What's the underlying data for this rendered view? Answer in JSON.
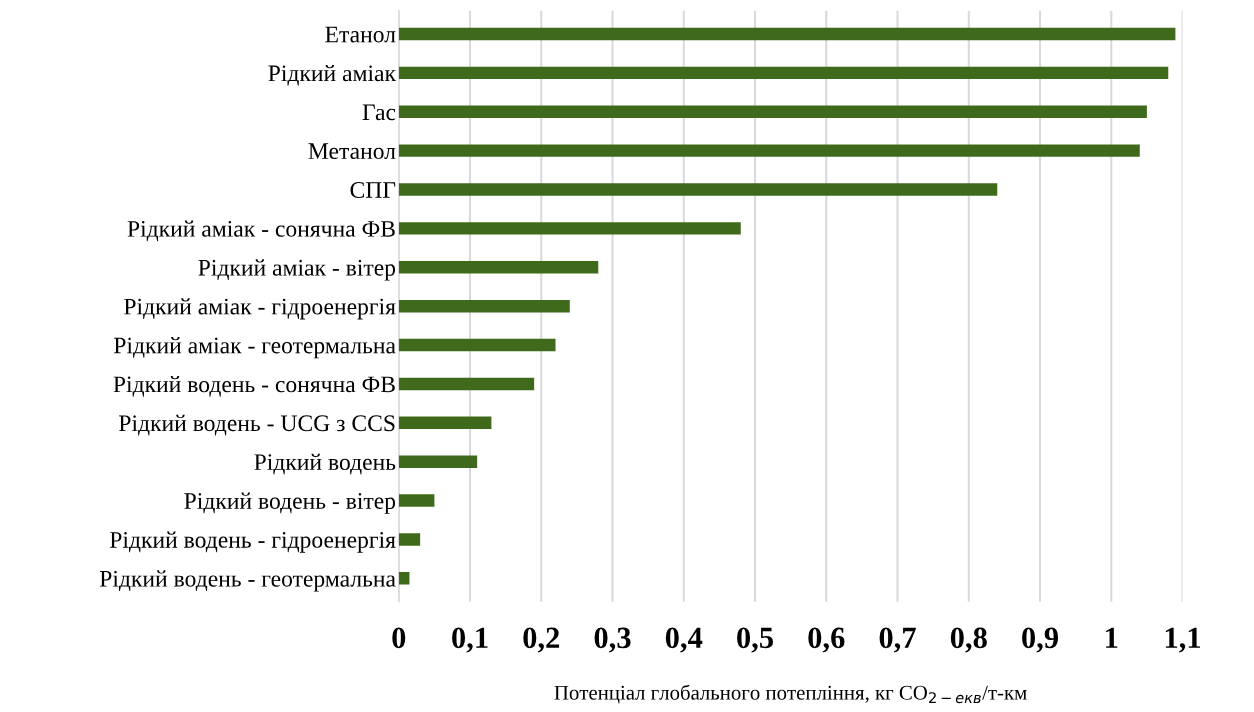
{
  "chart_data": {
    "type": "bar",
    "orientation": "horizontal",
    "xlabel": "Потенціал глобального потепління, кг CO$_{2−екв}$/т-км",
    "categories": [
      "Етанол",
      "Рідкий аміак",
      "Гас",
      "Метанол",
      "СПГ",
      "Рідкий аміак - сонячна ФВ",
      "Рідкий аміак - вітер",
      "Рідкий аміак - гідроенергія",
      "Рідкий аміак - геотермальна",
      "Рідкий водень - сонячна ФВ",
      "Рідкий водень - UCG з CCS",
      "Рідкий водень",
      "Рідкий водень - вітер",
      "Рідкий водень - гідроенергія",
      "Рідкий водень - геотермальна"
    ],
    "values": [
      1.09,
      1.08,
      1.05,
      1.04,
      0.84,
      0.48,
      0.28,
      0.24,
      0.22,
      0.19,
      0.13,
      0.11,
      0.05,
      0.03,
      0.015
    ],
    "color": "#3f6a1c",
    "xlim": [
      0,
      1.1
    ],
    "xticks": [
      0,
      {
        "value": 0.1,
        "label": "0,1"
      },
      {
        "value": 0.2,
        "label": "0,2"
      },
      {
        "value": 0.3,
        "label": "0,3"
      },
      {
        "value": 0.4,
        "label": "0,4"
      },
      {
        "value": 0.5,
        "label": "0,5"
      },
      {
        "value": 0.6,
        "label": "0,6"
      },
      {
        "value": 0.7,
        "label": "0,7"
      },
      {
        "value": 0.8,
        "label": "0,8"
      },
      {
        "value": 0.9,
        "label": "0,9"
      },
      1,
      {
        "value": 1.1,
        "label": "1,1"
      }
    ],
    "grid": "x"
  }
}
